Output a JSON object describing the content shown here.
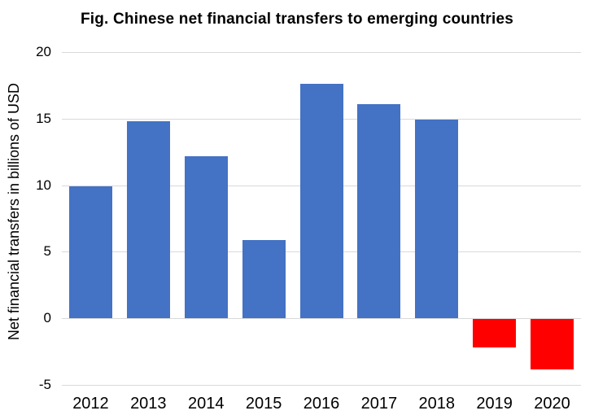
{
  "title": "Fig. Chinese net financial transfers to emerging countries",
  "chart_data": {
    "type": "bar",
    "title": "Fig. Chinese net financial transfers to emerging countries",
    "ylabel": "Net financial transfers in billions of USD",
    "xlabel": "",
    "categories": [
      "2012",
      "2013",
      "2014",
      "2015",
      "2016",
      "2017",
      "2018",
      "2019",
      "2020"
    ],
    "values": [
      9.9,
      14.8,
      12.2,
      5.9,
      17.6,
      16.1,
      14.9,
      -2.1,
      -3.8
    ],
    "bar_colors": [
      "#4472C4",
      "#4472C4",
      "#4472C4",
      "#4472C4",
      "#4472C4",
      "#4472C4",
      "#4472C4",
      "#FF0000",
      "#FF0000"
    ],
    "positive_color": "#4472C4",
    "negative_color": "#FF0000",
    "ylim": [
      -5,
      20
    ],
    "yticks": [
      20,
      15,
      10,
      5,
      0,
      -5
    ],
    "grid": true,
    "gridline_color": "#D9D9D9",
    "background_color": "#FFFFFF",
    "text_color": "#000000",
    "legend": "none"
  }
}
